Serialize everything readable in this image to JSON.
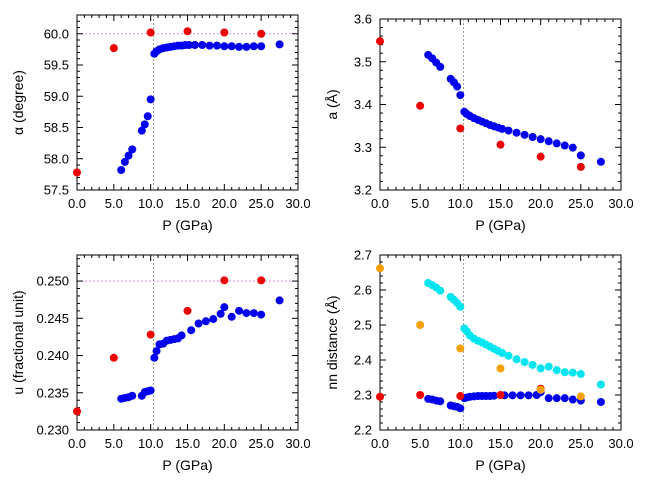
{
  "colors": {
    "blue": "#0000ee",
    "red": "#ee0000",
    "cyan": "#00e5f0",
    "orange": "#f5a000",
    "refline": "#e070e0",
    "vline": "#888888"
  },
  "chart_data": [
    {
      "id": "alpha",
      "type": "scatter",
      "xlabel": "P (GPa)",
      "ylabel": "α (degree)",
      "xlim": [
        0,
        30
      ],
      "ylim": [
        57.5,
        60.3
      ],
      "xticks": [
        "0.0",
        "5.0",
        "10.0",
        "15.0",
        "20.0",
        "25.0",
        "30.0"
      ],
      "yticks": [
        "57.5",
        "58.0",
        "58.5",
        "59.0",
        "59.5",
        "60.0"
      ],
      "yticks_values": [
        57.5,
        58.0,
        58.5,
        59.0,
        59.5,
        60.0
      ],
      "ref_hline": 60.0,
      "ref_vline": 10.4,
      "series": [
        {
          "name": "blue",
          "color": "blue",
          "x": [
            6.0,
            6.5,
            7.0,
            7.5,
            8.8,
            9.2,
            9.6,
            10.0,
            10.5,
            10.8,
            11.2,
            11.7,
            12.2,
            12.7,
            13.2,
            13.7,
            14.2,
            14.7,
            15.2,
            16.0,
            17.0,
            18.0,
            19.0,
            20.0,
            21.0,
            22.0,
            23.0,
            24.0,
            25.0,
            27.5
          ],
          "y": [
            57.82,
            57.95,
            58.05,
            58.15,
            58.45,
            58.55,
            58.68,
            58.95,
            59.68,
            59.72,
            59.75,
            59.77,
            59.78,
            59.79,
            59.8,
            59.81,
            59.81,
            59.82,
            59.82,
            59.82,
            59.82,
            59.81,
            59.81,
            59.8,
            59.8,
            59.79,
            59.79,
            59.8,
            59.8,
            59.83
          ]
        },
        {
          "name": "red",
          "color": "red",
          "x": [
            0.0,
            5.0,
            10.0,
            15.0,
            20.0,
            25.0
          ],
          "y": [
            57.78,
            59.77,
            60.02,
            60.04,
            60.02,
            60.0
          ]
        }
      ]
    },
    {
      "id": "a",
      "type": "scatter",
      "xlabel": "P (GPa)",
      "ylabel": "a (Å)",
      "xlim": [
        0,
        30
      ],
      "ylim": [
        3.2,
        3.6
      ],
      "xticks": [
        "0.0",
        "5.0",
        "10.0",
        "15.0",
        "20.0",
        "25.0",
        "30.0"
      ],
      "yticks": [
        "3.2",
        "3.3",
        "3.4",
        "3.5",
        "3.6"
      ],
      "yticks_values": [
        3.2,
        3.3,
        3.4,
        3.5,
        3.6
      ],
      "ref_hline": null,
      "ref_vline": 10.4,
      "series": [
        {
          "name": "blue",
          "color": "blue",
          "x": [
            6.0,
            6.5,
            7.0,
            7.5,
            8.8,
            9.2,
            9.6,
            10.0,
            10.5,
            10.8,
            11.2,
            11.7,
            12.2,
            12.7,
            13.2,
            13.7,
            14.2,
            14.7,
            15.2,
            16.0,
            17.0,
            18.0,
            19.0,
            20.0,
            21.0,
            22.0,
            23.0,
            24.0,
            25.0,
            27.5
          ],
          "y": [
            3.516,
            3.508,
            3.498,
            3.488,
            3.46,
            3.452,
            3.442,
            3.422,
            3.383,
            3.378,
            3.373,
            3.368,
            3.364,
            3.36,
            3.356,
            3.352,
            3.349,
            3.346,
            3.343,
            3.339,
            3.334,
            3.329,
            3.324,
            3.319,
            3.314,
            3.309,
            3.304,
            3.299,
            3.281,
            3.266
          ]
        },
        {
          "name": "red",
          "color": "red",
          "x": [
            0.0,
            5.0,
            10.0,
            15.0,
            20.0,
            25.0
          ],
          "y": [
            3.548,
            3.397,
            3.344,
            3.306,
            3.278,
            3.254
          ]
        }
      ]
    },
    {
      "id": "u",
      "type": "scatter",
      "xlabel": "P (GPa)",
      "ylabel": "u (fractional unit)",
      "xlim": [
        0,
        30
      ],
      "ylim": [
        0.23,
        0.2535
      ],
      "xticks": [
        "0.0",
        "5.0",
        "10.0",
        "15.0",
        "20.0",
        "25.0",
        "30.0"
      ],
      "yticks": [
        "0.230",
        "0.235",
        "0.240",
        "0.245",
        "0.250"
      ],
      "yticks_values": [
        0.23,
        0.235,
        0.24,
        0.245,
        0.25
      ],
      "ref_hline": 0.25,
      "ref_vline": 10.4,
      "series": [
        {
          "name": "blue",
          "color": "blue",
          "x": [
            6.0,
            6.5,
            7.0,
            7.5,
            8.8,
            9.2,
            9.6,
            10.0,
            10.5,
            10.8,
            11.2,
            11.7,
            12.2,
            12.7,
            13.2,
            13.7,
            14.2,
            15.5,
            16.5,
            17.5,
            18.5,
            19.5,
            20.0,
            21.0,
            22.0,
            23.0,
            24.0,
            25.0,
            27.5
          ],
          "y": [
            0.2342,
            0.2343,
            0.2344,
            0.2346,
            0.2346,
            0.2351,
            0.2352,
            0.2353,
            0.2397,
            0.2406,
            0.2415,
            0.2416,
            0.242,
            0.2421,
            0.2422,
            0.2423,
            0.2427,
            0.2434,
            0.2443,
            0.2446,
            0.2449,
            0.2456,
            0.2465,
            0.2452,
            0.246,
            0.2457,
            0.2457,
            0.2455,
            0.2474
          ]
        },
        {
          "name": "red",
          "color": "red",
          "x": [
            0.0,
            5.0,
            10.0,
            15.0,
            20.0,
            25.0
          ],
          "y": [
            0.2325,
            0.2397,
            0.2428,
            0.246,
            0.2501,
            0.2501
          ]
        }
      ]
    },
    {
      "id": "nn",
      "type": "scatter",
      "xlabel": "P (GPa)",
      "ylabel": "nn distance (Å)",
      "xlim": [
        0,
        30
      ],
      "ylim": [
        2.2,
        2.7
      ],
      "xticks": [
        "0.0",
        "5.0",
        "10.0",
        "15.0",
        "20.0",
        "25.0",
        "30.0"
      ],
      "yticks": [
        "2.2",
        "2.3",
        "2.4",
        "2.5",
        "2.6",
        "2.7"
      ],
      "yticks_values": [
        2.2,
        2.3,
        2.4,
        2.5,
        2.6,
        2.7
      ],
      "ref_hline": null,
      "ref_vline": 10.4,
      "series": [
        {
          "name": "cyan",
          "color": "cyan",
          "x": [
            6.0,
            6.5,
            7.0,
            7.5,
            8.8,
            9.2,
            9.6,
            10.0,
            10.5,
            10.8,
            11.2,
            11.7,
            12.2,
            12.7,
            13.2,
            13.7,
            14.2,
            14.7,
            15.2,
            16.0,
            17.0,
            18.0,
            19.0,
            20.0,
            21.0,
            22.0,
            23.0,
            24.0,
            25.0,
            27.5
          ],
          "y": [
            2.62,
            2.614,
            2.607,
            2.598,
            2.58,
            2.572,
            2.563,
            2.552,
            2.49,
            2.482,
            2.47,
            2.461,
            2.455,
            2.45,
            2.444,
            2.438,
            2.432,
            2.426,
            2.42,
            2.412,
            2.402,
            2.394,
            2.386,
            2.376,
            2.381,
            2.371,
            2.365,
            2.364,
            2.36,
            2.33
          ]
        },
        {
          "name": "blue",
          "color": "blue",
          "x": [
            6.0,
            6.5,
            7.0,
            7.5,
            8.8,
            9.2,
            9.6,
            10.0,
            10.5,
            10.8,
            11.2,
            11.7,
            12.2,
            12.7,
            13.2,
            13.7,
            14.2,
            15.5,
            16.5,
            17.5,
            18.5,
            19.5,
            20.0,
            21.0,
            22.0,
            23.0,
            24.0,
            25.0,
            27.5
          ],
          "y": [
            2.289,
            2.287,
            2.284,
            2.282,
            2.27,
            2.268,
            2.266,
            2.262,
            2.291,
            2.293,
            2.295,
            2.296,
            2.297,
            2.297,
            2.297,
            2.297,
            2.298,
            2.299,
            2.299,
            2.299,
            2.299,
            2.3,
            2.308,
            2.291,
            2.291,
            2.291,
            2.287,
            2.284,
            2.28
          ]
        },
        {
          "name": "red",
          "color": "red",
          "x": [
            0.0,
            5.0,
            10.0,
            15.0,
            20.0
          ],
          "y": [
            2.295,
            2.3,
            2.297,
            2.3,
            2.318
          ]
        },
        {
          "name": "orange",
          "color": "orange",
          "x": [
            0.0,
            5.0,
            10.0,
            15.0,
            20.0,
            25.0
          ],
          "y": [
            2.662,
            2.5,
            2.433,
            2.376,
            2.315,
            2.296
          ]
        }
      ]
    }
  ]
}
